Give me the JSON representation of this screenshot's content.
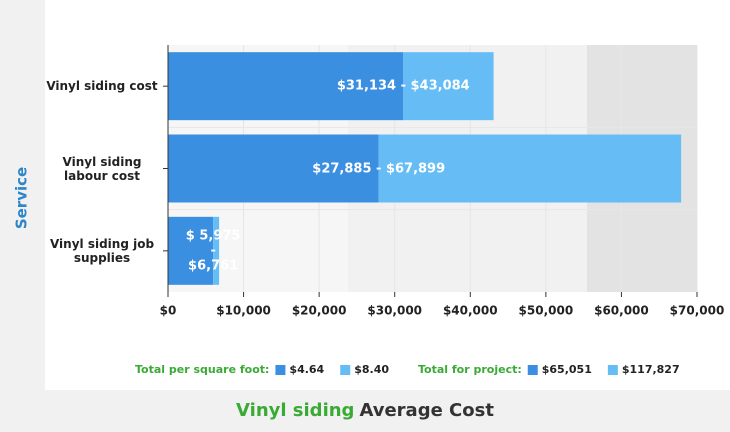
{
  "chart_data": {
    "type": "range-bar",
    "title_highlight": "Vinyl siding",
    "title": "Average Cost",
    "y_label": "Service",
    "categories": [
      "Vinyl siding cost",
      "Vinyl siding labour cost",
      "Vinyl siding job supplies"
    ],
    "low": [
      31134,
      27885,
      5975
    ],
    "high": [
      43084,
      67899,
      6761
    ],
    "value_labels": [
      "$31,134 - $43,084",
      "$27,885 - $67,899",
      "$ 5,975 - $6,761"
    ],
    "low_color": "#3b8fe0",
    "high_color": "#66bdf6",
    "xlim": [
      0,
      70000
    ],
    "xticks": [
      {
        "value": 0,
        "label": "$0"
      },
      {
        "value": 10000,
        "label": "$10,000"
      },
      {
        "value": 20000,
        "label": "$20,000"
      },
      {
        "value": 30000,
        "label": "$30,000"
      },
      {
        "value": 40000,
        "label": "$40,000"
      },
      {
        "value": 50000,
        "label": "$50,000"
      },
      {
        "value": 60000,
        "label": "$60,000"
      },
      {
        "value": 70000,
        "label": "$70,000"
      }
    ],
    "legend": [
      {
        "title": "Total per square foot:",
        "low": "$4.64",
        "high": "$8.40"
      },
      {
        "title": "Total for project:",
        "low": "$65,051",
        "high": "$117,827"
      }
    ]
  }
}
